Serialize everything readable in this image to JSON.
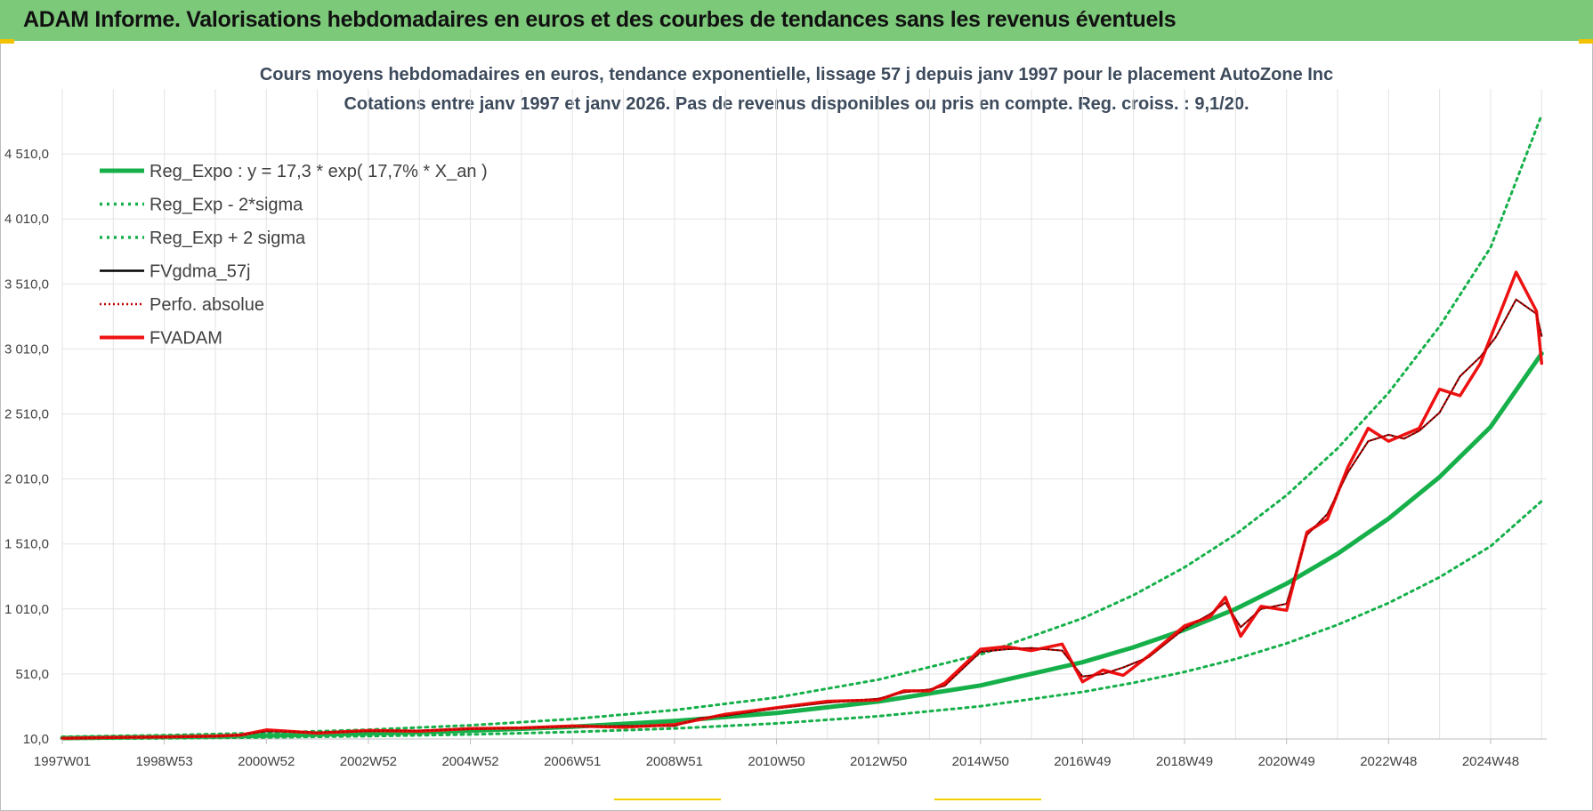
{
  "banner": {
    "title": "ADAM Informe. Valorisations hebdomadaires en euros et des courbes de tendances sans les revenus éventuels"
  },
  "colors": {
    "banner_bg": "#7dc97a",
    "trend": "#16b04a",
    "band": "#16b04a",
    "gdma": "#000000",
    "perfo": "#c00000",
    "fvadam": "#ee1111",
    "grid": "#e3e3e3"
  },
  "chart_data": {
    "type": "line",
    "title": "Cours moyens hebdomadaires en euros, tendance exponentielle, lissage 57 j depuis janv 1997 pour le placement AutoZone Inc",
    "subtitle": "Cotations entre janv 1997 et janv 2026. Pas de revenus disponibles ou pris en compte. Reg. croiss. : 9,1/20.",
    "x_ticks": [
      "1997W01",
      "1998W53",
      "2000W52",
      "2002W52",
      "2004W52",
      "2006W51",
      "2008W51",
      "2010W50",
      "2012W50",
      "2014W50",
      "2016W49",
      "2018W49",
      "2020W49",
      "2022W48",
      "2024W48"
    ],
    "y_ticks": [
      "10,0",
      "510,0",
      "1 010,0",
      "1 510,0",
      "2 010,0",
      "2 510,0",
      "3 010,0",
      "3 510,0",
      "4 010,0",
      "4 510,0"
    ],
    "ylim": [
      10,
      5010
    ],
    "grid": true,
    "legend_position": "top-left",
    "legend": [
      "Reg_Expo : y = 17,3 * exp( 17,7% *  X_an )",
      "Reg_Exp - 2*sigma",
      "Reg_Exp + 2 sigma",
      "FVgdma_57j",
      "Perfo. absolue",
      "FVADAM"
    ],
    "series": [
      {
        "name": "Reg_Expo : y = 17,3 * exp( 17,7% *  X_an )",
        "x": [
          1997,
          1999,
          2001,
          2003,
          2005,
          2007,
          2009,
          2011,
          2013,
          2015,
          2017,
          2018,
          2019,
          2020,
          2021,
          2022,
          2023,
          2024,
          2025,
          2026
        ],
        "y": [
          17,
          25,
          36,
          52,
          73,
          104,
          148,
          210,
          298,
          422,
          600,
          715,
          850,
          1010,
          1205,
          1435,
          1705,
          2025,
          2410,
          2975
        ]
      },
      {
        "name": "Reg_Exp - 2*sigma",
        "x": [
          1997,
          1999,
          2001,
          2003,
          2005,
          2007,
          2009,
          2011,
          2013,
          2015,
          2017,
          2018,
          2019,
          2020,
          2021,
          2022,
          2023,
          2024,
          2025,
          2026
        ],
        "y": [
          11,
          15,
          22,
          32,
          45,
          64,
          91,
          130,
          185,
          262,
          372,
          442,
          526,
          625,
          745,
          888,
          1056,
          1254,
          1492,
          1840
        ]
      },
      {
        "name": "Reg_Exp + 2 sigma",
        "x": [
          1997,
          1999,
          2001,
          2003,
          2005,
          2007,
          2009,
          2011,
          2013,
          2015,
          2017,
          2018,
          2019,
          2020,
          2021,
          2022,
          2023,
          2024,
          2025,
          2026
        ],
        "y": [
          27,
          39,
          57,
          81,
          115,
          163,
          232,
          329,
          466,
          660,
          938,
          1117,
          1330,
          1583,
          1885,
          2245,
          2673,
          3183,
          3790,
          4810
        ]
      },
      {
        "name": "FVgdma_57j",
        "x": [
          1997,
          1998,
          1999,
          2000,
          2000.5,
          2001,
          2002,
          2003,
          2004,
          2005,
          2006,
          2007,
          2008,
          2009,
          2009.5,
          2010,
          2011,
          2012,
          2013,
          2013.5,
          2014,
          2014.3,
          2015,
          2015.5,
          2016,
          2016.6,
          2017,
          2017.4,
          2017.8,
          2018.3,
          2019,
          2019.5,
          2019.8,
          2020.1,
          2020.5,
          2021,
          2021.4,
          2021.8,
          2022.2,
          2022.6,
          2023,
          2023.3,
          2023.6,
          2024,
          2024.4,
          2024.8,
          2025.1,
          2025.5,
          2025.9,
          2026
        ],
        "y": [
          15,
          20,
          25,
          30,
          40,
          70,
          60,
          70,
          75,
          85,
          95,
          105,
          110,
          110,
          170,
          190,
          245,
          290,
          320,
          370,
          390,
          420,
          680,
          700,
          710,
          690,
          490,
          510,
          560,
          640,
          860,
          970,
          1060,
          870,
          1010,
          1050,
          1580,
          1740,
          2060,
          2300,
          2350,
          2320,
          2380,
          2520,
          2800,
          2950,
          3100,
          3390,
          3280,
          3110
        ]
      },
      {
        "name": "Perfo. absolue",
        "x": [
          1997,
          1998,
          1999,
          2000,
          2000.5,
          2001,
          2002,
          2003,
          2004,
          2005,
          2006,
          2007,
          2008,
          2009,
          2009.5,
          2010,
          2011,
          2012,
          2013,
          2013.5,
          2014,
          2014.3,
          2015,
          2015.5,
          2016,
          2016.6,
          2017,
          2017.4,
          2017.8,
          2018.3,
          2019,
          2019.5,
          2019.8,
          2020.1,
          2020.5,
          2021,
          2021.4,
          2021.8,
          2022.2,
          2022.6,
          2023,
          2023.3,
          2023.6,
          2024,
          2024.4,
          2024.8,
          2025.1,
          2025.5,
          2025.9,
          2026
        ],
        "y": [
          15,
          20,
          25,
          30,
          40,
          70,
          60,
          70,
          75,
          85,
          95,
          105,
          110,
          110,
          170,
          190,
          245,
          290,
          320,
          370,
          390,
          420,
          680,
          700,
          710,
          690,
          490,
          510,
          560,
          640,
          860,
          970,
          1060,
          870,
          1010,
          1050,
          1580,
          1740,
          2060,
          2300,
          2350,
          2320,
          2380,
          2520,
          2800,
          2950,
          3100,
          3390,
          3280,
          3110
        ]
      },
      {
        "name": "FVADAM",
        "x": [
          1997,
          1998,
          1999,
          2000,
          2000.5,
          2001,
          2002,
          2003,
          2004,
          2005,
          2006,
          2007,
          2008,
          2009,
          2009.5,
          2010,
          2011,
          2012,
          2013,
          2013.5,
          2014,
          2014.3,
          2015,
          2015.5,
          2016,
          2016.6,
          2017,
          2017.4,
          2017.8,
          2018.3,
          2019,
          2019.5,
          2019.8,
          2020.1,
          2020.5,
          2021,
          2021.4,
          2021.8,
          2022.2,
          2022.6,
          2023,
          2023.3,
          2023.6,
          2024,
          2024.4,
          2024.8,
          2025.1,
          2025.5,
          2025.9,
          2026
        ],
        "y": [
          15,
          22,
          25,
          32,
          40,
          80,
          55,
          75,
          70,
          90,
          95,
          110,
          100,
          120,
          160,
          200,
          250,
          300,
          310,
          380,
          380,
          440,
          700,
          720,
          690,
          740,
          450,
          540,
          500,
          650,
          880,
          950,
          1100,
          800,
          1030,
          1000,
          1600,
          1700,
          2100,
          2400,
          2300,
          2350,
          2400,
          2700,
          2650,
          2900,
          3200,
          3600,
          3300,
          2900
        ]
      }
    ]
  }
}
